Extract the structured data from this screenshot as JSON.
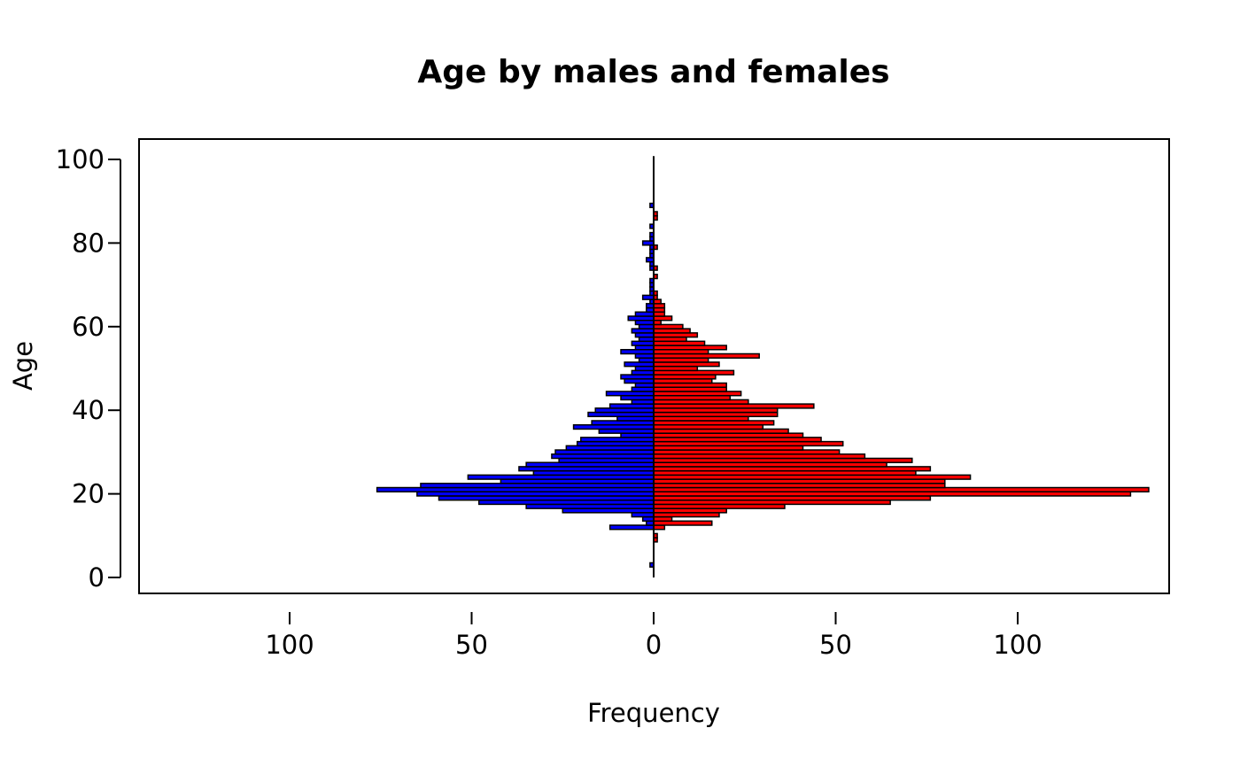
{
  "chart_data": {
    "type": "bar",
    "orientation": "horizontal",
    "layout": "back-to-back",
    "title": "Age by males and females",
    "xlabel": "Frequency",
    "ylabel": "Age",
    "x_ticks": [
      100,
      50,
      0,
      50,
      100
    ],
    "y_ticks": [
      0,
      20,
      40,
      60,
      80,
      100
    ],
    "xlim": [
      -140,
      140
    ],
    "ylim": [
      -4,
      105
    ],
    "grid": false,
    "colors": {
      "males": "#0000ff",
      "females": "#ff0000",
      "outline": "#000000"
    },
    "series": [
      {
        "side": "left",
        "color": "#0000ff",
        "ages": [
          3,
          12,
          13,
          14,
          15,
          16,
          17,
          18,
          19,
          20,
          21,
          22,
          23,
          24,
          25,
          26,
          27,
          28,
          29,
          30,
          31,
          32,
          33,
          34,
          35,
          36,
          37,
          38,
          39,
          40,
          41,
          42,
          43,
          44,
          45,
          46,
          47,
          48,
          49,
          50,
          51,
          52,
          53,
          54,
          55,
          56,
          57,
          58,
          59,
          60,
          61,
          62,
          63,
          64,
          65,
          66,
          67,
          68,
          69,
          70,
          71,
          72,
          73,
          74,
          75,
          76,
          77,
          78,
          79,
          80,
          81,
          82,
          84,
          85,
          86,
          87,
          88,
          89
        ],
        "values": [
          1,
          12,
          2,
          3,
          6,
          25,
          35,
          48,
          59,
          65,
          76,
          64,
          42,
          51,
          33,
          37,
          35,
          26,
          28,
          27,
          24,
          21,
          20,
          9,
          15,
          22,
          17,
          10,
          18,
          16,
          12,
          6,
          9,
          13,
          6,
          5,
          8,
          9,
          6,
          5,
          8,
          4,
          5,
          9,
          5,
          6,
          4,
          5,
          6,
          4,
          5,
          7,
          5,
          2,
          2,
          1,
          3,
          1,
          1,
          1,
          1,
          0,
          0,
          1,
          1,
          2,
          1,
          1,
          1,
          3,
          1,
          1,
          1,
          0,
          0,
          0,
          0,
          1
        ]
      },
      {
        "side": "right",
        "color": "#ff0000",
        "ages": [
          9,
          10,
          12,
          13,
          14,
          15,
          16,
          17,
          18,
          19,
          20,
          21,
          22,
          23,
          24,
          25,
          26,
          27,
          28,
          29,
          30,
          31,
          32,
          33,
          34,
          35,
          36,
          37,
          38,
          39,
          40,
          41,
          42,
          43,
          44,
          45,
          46,
          47,
          48,
          49,
          50,
          51,
          52,
          53,
          54,
          55,
          56,
          57,
          58,
          59,
          60,
          61,
          62,
          63,
          64,
          65,
          66,
          67,
          68,
          69,
          70,
          71,
          72,
          73,
          74,
          75,
          76,
          77,
          78,
          79,
          80,
          81,
          82,
          83,
          84,
          85,
          86,
          87,
          88
        ],
        "values": [
          1,
          1,
          3,
          16,
          5,
          18,
          20,
          36,
          65,
          76,
          131,
          136,
          80,
          80,
          87,
          72,
          76,
          64,
          71,
          58,
          51,
          41,
          52,
          46,
          41,
          37,
          30,
          33,
          26,
          34,
          34,
          44,
          26,
          21,
          24,
          20,
          20,
          16,
          17,
          22,
          12,
          18,
          15,
          29,
          15,
          20,
          14,
          9,
          12,
          10,
          8,
          2,
          5,
          3,
          3,
          3,
          2,
          1,
          1,
          0,
          0,
          0,
          1,
          0,
          1,
          0,
          0,
          0,
          0,
          1,
          0,
          0,
          0,
          0,
          0,
          0,
          1,
          1,
          0
        ]
      }
    ]
  }
}
